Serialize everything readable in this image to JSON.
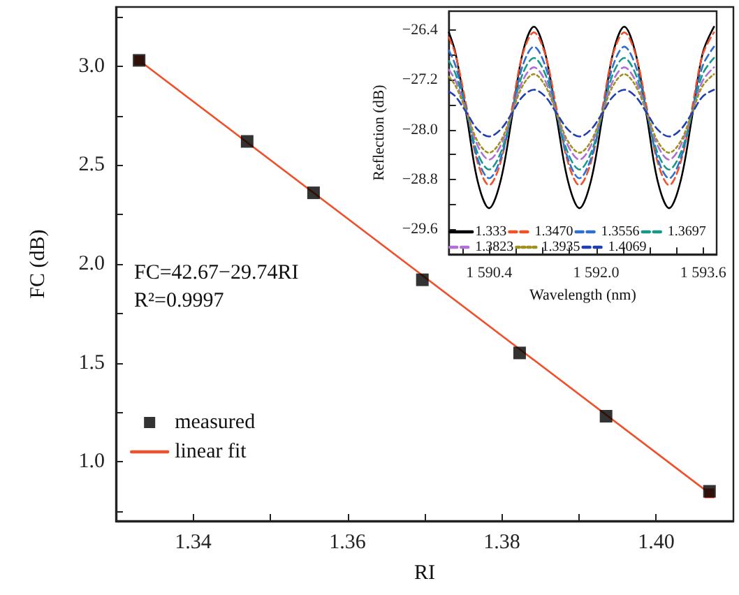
{
  "chart_data": [
    {
      "type": "scatter",
      "xlabel": "RI",
      "ylabel": "FC (dB)",
      "marker": "square",
      "legend": "bottom left",
      "grid": false,
      "x": [
        1.333,
        1.347,
        1.3556,
        1.3697,
        1.3823,
        1.3935,
        1.4069
      ],
      "series": [
        {
          "name": "measured",
          "color": "#000000",
          "values": [
            3.03,
            2.62,
            2.36,
            1.92,
            1.55,
            1.23,
            0.85
          ]
        },
        {
          "name": "linear fit",
          "type": "line",
          "color": "#f0502a",
          "line_style": "solid",
          "x": [
            1.333,
            1.4069
          ],
          "values": [
            3.03,
            0.84
          ]
        }
      ],
      "xlim": [
        1.33,
        1.41
      ],
      "xticks": [
        {
          "value": 1.34,
          "label": "1.34"
        },
        {
          "value": 1.35,
          "label": null
        },
        {
          "value": 1.36,
          "label": "1.36"
        },
        {
          "value": 1.37,
          "label": null
        },
        {
          "value": 1.38,
          "label": "1.38"
        },
        {
          "value": 1.39,
          "label": null
        },
        {
          "value": 1.4,
          "label": "1.40"
        }
      ],
      "ylim": [
        0.7,
        3.3
      ],
      "yticks": [
        {
          "value": 0.75,
          "label": null
        },
        {
          "value": 1,
          "label": "1.0"
        },
        {
          "value": 1.25,
          "label": null
        },
        {
          "value": 1.5,
          "label": "1.5"
        },
        {
          "value": 1.75,
          "label": null
        },
        {
          "value": 2,
          "label": "2.0"
        },
        {
          "value": 2.25,
          "label": null
        },
        {
          "value": 2.5,
          "label": "2.5"
        },
        {
          "value": 2.75,
          "label": null
        },
        {
          "value": 3,
          "label": "3.0"
        },
        {
          "value": 3.25,
          "label": null
        }
      ],
      "annotations": [
        "FC=42.67−29.74RI",
        "R²=0.9997"
      ]
    },
    {
      "type": "line",
      "xlabel": "Wavelength (nm)",
      "ylabel": "Reflection (dB)",
      "legend": "bottom",
      "grid": false,
      "x": [
        1589.8,
        1589.9,
        1590.07,
        1590.23,
        1590.4,
        1590.57,
        1590.74,
        1590.9,
        1591.07,
        1591.24,
        1591.41,
        1591.58,
        1591.75,
        1591.92,
        1592.09,
        1592.25,
        1592.42,
        1592.59,
        1592.76,
        1592.92,
        1593.09,
        1593.26,
        1593.43,
        1593.59,
        1593.76
      ],
      "series": [
        {
          "name": "1.333",
          "color": "#000000",
          "line_style": "solid",
          "values": [
            -26.44,
            -26.78,
            -27.81,
            -28.83,
            -29.26,
            -28.83,
            -27.81,
            -26.78,
            -26.35,
            -26.78,
            -27.81,
            -28.83,
            -29.26,
            -28.83,
            -27.81,
            -26.78,
            -26.35,
            -26.78,
            -27.81,
            -28.83,
            -29.26,
            -28.83,
            -27.81,
            -26.78,
            -26.35
          ]
        },
        {
          "name": "1.3470",
          "color": "#f0502a",
          "line_style": "dashed",
          "values": [
            -26.52,
            -26.8,
            -27.67,
            -28.53,
            -28.89,
            -28.53,
            -27.67,
            -26.8,
            -26.44,
            -26.8,
            -27.67,
            -28.53,
            -28.89,
            -28.53,
            -27.67,
            -26.8,
            -26.44,
            -26.8,
            -27.67,
            -28.53,
            -28.89,
            -28.53,
            -27.67,
            -26.8,
            -26.44
          ]
        },
        {
          "name": "1.3556",
          "color": "#2e6fd0",
          "line_style": "dashed",
          "values": [
            -26.73,
            -26.98,
            -27.73,
            -28.47,
            -28.78,
            -28.47,
            -27.73,
            -26.98,
            -26.67,
            -26.98,
            -27.73,
            -28.47,
            -28.78,
            -28.47,
            -27.73,
            -26.98,
            -26.67,
            -26.98,
            -27.73,
            -28.47,
            -28.78,
            -28.47,
            -27.73,
            -26.98,
            -26.67
          ]
        },
        {
          "name": "1.3697",
          "color": "#18988a",
          "line_style": "dashed",
          "values": [
            -26.9,
            -27.11,
            -27.75,
            -28.38,
            -28.64,
            -28.38,
            -27.75,
            -27.11,
            -26.85,
            -27.11,
            -27.75,
            -28.38,
            -28.64,
            -28.38,
            -27.75,
            -27.11,
            -26.85,
            -27.11,
            -27.75,
            -28.38,
            -28.64,
            -28.38,
            -27.75,
            -27.11,
            -26.85
          ]
        },
        {
          "name": "1.3823",
          "color": "#b070d8",
          "line_style": "dashed",
          "values": [
            -27.04,
            -27.22,
            -27.74,
            -28.26,
            -28.48,
            -28.26,
            -27.74,
            -27.22,
            -27.0,
            -27.22,
            -27.74,
            -28.26,
            -28.48,
            -28.26,
            -27.74,
            -27.22,
            -27.0,
            -27.22,
            -27.74,
            -28.26,
            -28.48,
            -28.26,
            -27.74,
            -27.22,
            -27.0
          ]
        },
        {
          "name": "1.3935",
          "color": "#a09020",
          "line_style": "dotted",
          "values": [
            -27.15,
            -27.3,
            -27.74,
            -28.19,
            -28.37,
            -28.19,
            -27.74,
            -27.3,
            -27.11,
            -27.3,
            -27.74,
            -28.19,
            -28.37,
            -28.19,
            -27.74,
            -27.3,
            -27.11,
            -27.3,
            -27.74,
            -28.19,
            -28.37,
            -28.19,
            -27.74,
            -27.3,
            -27.11
          ]
        },
        {
          "name": "1.4069",
          "color": "#2040b0",
          "line_style": "dashed",
          "values": [
            -27.39,
            -27.47,
            -27.74,
            -28.0,
            -28.11,
            -28.0,
            -27.74,
            -27.47,
            -27.36,
            -27.47,
            -27.74,
            -28.0,
            -28.11,
            -28.0,
            -27.74,
            -27.47,
            -27.36,
            -27.47,
            -27.74,
            -28.0,
            -28.11,
            -28.0,
            -27.74,
            -27.47,
            -27.36
          ]
        }
      ],
      "xlim": [
        1589.8,
        1593.8
      ],
      "xticks": [
        {
          "value": 1590,
          "label": null
        },
        {
          "value": 1590.4,
          "label": "1 590.4"
        },
        {
          "value": 1590.8,
          "label": null
        },
        {
          "value": 1591.2,
          "label": null
        },
        {
          "value": 1591.6,
          "label": null
        },
        {
          "value": 1592,
          "label": "1 592.0"
        },
        {
          "value": 1592.4,
          "label": null
        },
        {
          "value": 1592.8,
          "label": null
        },
        {
          "value": 1593.2,
          "label": null
        },
        {
          "value": 1593.6,
          "label": "1 593.6"
        }
      ],
      "ylim": [
        -30.0,
        -26.1
      ],
      "yticks": [
        {
          "value": -29.6,
          "label": "−29.6"
        },
        {
          "value": -29.2,
          "label": null
        },
        {
          "value": -28.8,
          "label": "−28.8"
        },
        {
          "value": -28.4,
          "label": null
        },
        {
          "value": -28.0,
          "label": "−28.0"
        },
        {
          "value": -27.6,
          "label": null
        },
        {
          "value": -27.2,
          "label": "−27.2"
        },
        {
          "value": -26.8,
          "label": null
        },
        {
          "value": -26.4,
          "label": "−26.4"
        }
      ]
    }
  ]
}
